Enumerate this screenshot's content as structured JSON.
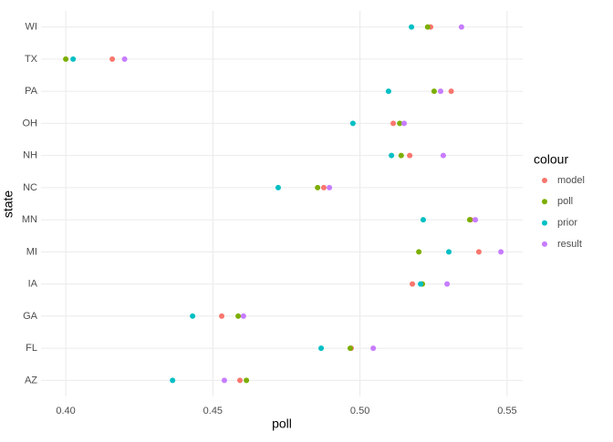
{
  "chart_data": {
    "type": "scatter",
    "x_label": "poll",
    "y_label": "state",
    "legend_title": "colour",
    "categories": [
      "AZ",
      "FL",
      "GA",
      "IA",
      "MI",
      "MN",
      "NC",
      "NH",
      "OH",
      "PA",
      "TX",
      "WI"
    ],
    "series": [
      {
        "name": "model",
        "color": "#F8766D",
        "values": [
          0.4592,
          0.497,
          0.453,
          0.5178,
          0.5404,
          0.5376,
          0.4877,
          0.5169,
          0.5113,
          0.531,
          0.4158,
          0.524
        ]
      },
      {
        "name": "poll",
        "color": "#7CAE00",
        "values": [
          0.4614,
          0.4967,
          0.4586,
          0.5212,
          0.52,
          0.5373,
          0.4856,
          0.514,
          0.5135,
          0.5252,
          0.4,
          0.523
        ]
      },
      {
        "name": "prior",
        "color": "#00BFC4",
        "values": [
          0.4363,
          0.4868,
          0.4431,
          0.5206,
          0.5302,
          0.5215,
          0.4722,
          0.5107,
          0.4976,
          0.5097,
          0.4025,
          0.5175
        ]
      },
      {
        "name": "result",
        "color": "#C77CFF",
        "values": [
          0.4539,
          0.5045,
          0.4604,
          0.5296,
          0.5479,
          0.5392,
          0.4896,
          0.5283,
          0.515,
          0.5274,
          0.42,
          0.5345
        ]
      }
    ],
    "xlim": [
      0.3916,
      0.5553
    ],
    "xticks": [
      {
        "value": 0.4,
        "label": "0.40"
      },
      0.45,
      {
        "value": 0.5,
        "label": "0.50"
      },
      0.55
    ],
    "grid": true,
    "legend_position": "right"
  }
}
